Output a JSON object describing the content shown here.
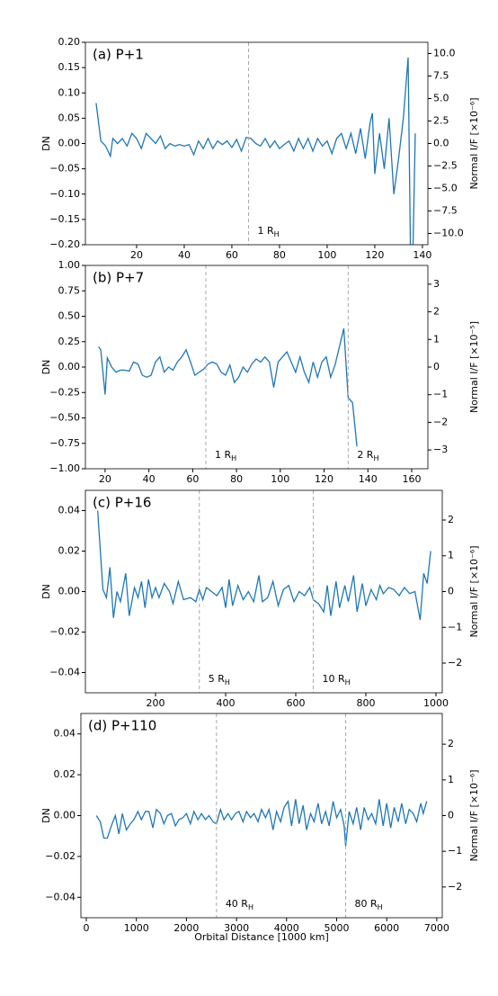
{
  "chart_data": [
    {
      "type": "line",
      "title": "(a) P+1",
      "ylabel": "DN",
      "y2label": "Normal I/F [×10⁻⁶]",
      "x": [
        3,
        5,
        7,
        9,
        10,
        12,
        14,
        16,
        18,
        20,
        22,
        24,
        26,
        28,
        30,
        32,
        34,
        36,
        38,
        40,
        42,
        44,
        46,
        48,
        50,
        52,
        54,
        56,
        58,
        60,
        62,
        64,
        66,
        68,
        70,
        72,
        74,
        76,
        78,
        80,
        82,
        84,
        86,
        88,
        90,
        92,
        94,
        96,
        98,
        100,
        102,
        104,
        106,
        108,
        110,
        112,
        114,
        116,
        118,
        119,
        120,
        122,
        124,
        126,
        128,
        130,
        132,
        134,
        135,
        136,
        137
      ],
      "series": [
        {
          "color": "#1f77b4",
          "values": [
            0.08,
            0.005,
            -0.005,
            -0.025,
            0.01,
            0,
            0.01,
            -0.005,
            0.02,
            0.01,
            -0.01,
            0.02,
            0.01,
            0,
            0.015,
            -0.01,
            0,
            -0.005,
            -0.002,
            -0.005,
            -0.002,
            -0.022,
            0.005,
            -0.01,
            0.01,
            -0.01,
            0.005,
            -0.002,
            0.005,
            -0.008,
            0.008,
            -0.015,
            0.012,
            0.01,
            0,
            -0.005,
            0.01,
            -0.008,
            0.005,
            -0.01,
            -0.002,
            0.005,
            -0.015,
            0.01,
            -0.01,
            0.01,
            -0.015,
            0.01,
            -0.005,
            0.005,
            -0.02,
            0.01,
            0.02,
            -0.01,
            0.02,
            -0.02,
            0.03,
            -0.03,
            0.04,
            0.06,
            -0.06,
            0.02,
            -0.05,
            0.05,
            -0.1,
            -0.03,
            0.05,
            0.17,
            -0.22,
            -0.22,
            0.02
          ]
        }
      ],
      "xlim": [
        -1.5,
        142.3
      ],
      "xticks": [
        20,
        40,
        60,
        80,
        100,
        120,
        140
      ],
      "ylim": [
        -0.2,
        0.2
      ],
      "yticks": [
        {
          "value": -0.2,
          "label": "−0.20"
        },
        {
          "value": -0.15,
          "label": "−0.15"
        },
        {
          "value": -0.1,
          "label": "−0.10"
        },
        {
          "value": -0.05,
          "label": "−0.05"
        },
        {
          "value": 0,
          "label": "0.00"
        },
        {
          "value": 0.05,
          "label": "0.05"
        },
        {
          "value": 0.1,
          "label": "0.10"
        },
        {
          "value": 0.15,
          "label": "0.15"
        },
        {
          "value": 0.2,
          "label": "0.20"
        }
      ],
      "y2lim": [
        -11.25,
        11.25
      ],
      "y2ticks": [
        {
          "value": -10,
          "label": "−10.0"
        },
        {
          "value": -7.5,
          "label": "−7.5"
        },
        {
          "value": -5,
          "label": "−5.0"
        },
        {
          "value": -2.5,
          "label": "−2.5"
        },
        {
          "value": 0,
          "label": "0.0"
        },
        {
          "value": 2.5,
          "label": "2.5"
        },
        {
          "value": 5,
          "label": "5.0"
        },
        {
          "value": 7.5,
          "label": "7.5"
        },
        {
          "value": 10,
          "label": "10.0"
        }
      ],
      "annotations": [
        {
          "x": 67,
          "text": "1 R",
          "sub": "H"
        }
      ]
    },
    {
      "type": "line",
      "title": "(b) P+7",
      "ylabel": "DN",
      "y2label": "Normal I/F [×10⁻⁵]",
      "x": [
        17,
        18,
        20,
        21,
        23,
        25,
        27,
        29,
        31,
        33,
        35,
        37,
        39,
        41,
        43,
        45,
        47,
        49,
        51,
        53,
        55,
        57,
        59,
        61,
        63,
        65,
        67,
        69,
        71,
        73,
        75,
        77,
        79,
        81,
        83,
        85,
        87,
        89,
        91,
        93,
        95,
        97,
        99,
        101,
        103,
        105,
        107,
        109,
        111,
        113,
        115,
        117,
        119,
        121,
        123,
        125,
        127,
        129,
        131,
        133,
        135
      ],
      "series": [
        {
          "color": "#1f77b4",
          "values": [
            0.2,
            0.17,
            -0.27,
            0.09,
            0,
            -0.05,
            -0.03,
            -0.03,
            -0.04,
            0.05,
            0.03,
            -0.08,
            -0.1,
            -0.08,
            0.05,
            0.1,
            -0.05,
            0,
            -0.03,
            0.05,
            0.1,
            0.17,
            0.05,
            -0.08,
            -0.05,
            -0.02,
            0.03,
            0.05,
            0.03,
            -0.05,
            -0.08,
            0.02,
            -0.15,
            -0.1,
            0,
            -0.05,
            0.03,
            0.08,
            0.05,
            0.1,
            0.05,
            -0.2,
            0.05,
            0.1,
            0.15,
            0.05,
            -0.05,
            0.1,
            -0.05,
            -0.15,
            0.05,
            -0.1,
            0.05,
            0.1,
            -0.1,
            0.02,
            0.2,
            0.38,
            -0.3,
            -0.35,
            -0.78
          ]
        }
      ],
      "xlim": [
        11,
        167.4
      ],
      "xticks": [
        20,
        40,
        60,
        80,
        100,
        120,
        140,
        160
      ],
      "ylim": [
        -1,
        1
      ],
      "yticks": [
        {
          "value": -1,
          "label": "−1.00"
        },
        {
          "value": -0.75,
          "label": "−0.75"
        },
        {
          "value": -0.5,
          "label": "−0.50"
        },
        {
          "value": -0.25,
          "label": "−0.25"
        },
        {
          "value": 0,
          "label": "0.00"
        },
        {
          "value": 0.25,
          "label": "0.25"
        },
        {
          "value": 0.5,
          "label": "0.50"
        },
        {
          "value": 0.75,
          "label": "0.75"
        },
        {
          "value": 1,
          "label": "1.00"
        }
      ],
      "y2lim": [
        -3.68,
        3.68
      ],
      "y2ticks": [
        {
          "value": -3,
          "label": "−3"
        },
        {
          "value": -2,
          "label": "−2"
        },
        {
          "value": -1,
          "label": "−1"
        },
        0,
        1,
        2,
        3
      ],
      "annotations": [
        {
          "x": 66,
          "text": "1 R",
          "sub": "H"
        },
        {
          "x": 131,
          "text": "2 R",
          "sub": "H"
        }
      ]
    },
    {
      "type": "line",
      "title": "(c) P+16",
      "ylabel": "DN",
      "y2label": "Normal I/F [×10⁻⁶]",
      "x": [
        35,
        50,
        60,
        70,
        80,
        90,
        100,
        115,
        125,
        140,
        150,
        160,
        170,
        180,
        190,
        200,
        210,
        225,
        240,
        250,
        265,
        280,
        300,
        315,
        325,
        335,
        345,
        360,
        375,
        390,
        400,
        410,
        420,
        435,
        450,
        465,
        480,
        495,
        505,
        520,
        535,
        550,
        565,
        580,
        595,
        610,
        625,
        640,
        650,
        665,
        680,
        690,
        700,
        715,
        725,
        740,
        750,
        765,
        775,
        790,
        800,
        815,
        830,
        840,
        850,
        865,
        880,
        895,
        910,
        925,
        940,
        955,
        965,
        975,
        985
      ],
      "series": [
        {
          "color": "#1f77b4",
          "values": [
            0.04,
            0.001,
            -0.003,
            0.012,
            -0.013,
            0,
            -0.005,
            0.009,
            -0.012,
            0.002,
            -0.003,
            0.005,
            -0.008,
            0.006,
            -0.003,
            0.002,
            -0.003,
            0.004,
            0,
            -0.006,
            0.005,
            -0.004,
            -0.003,
            -0.005,
            0.001,
            -0.004,
            0.002,
            0,
            -0.002,
            0.002,
            -0.008,
            0.006,
            -0.007,
            0.003,
            -0.004,
            0,
            -0.005,
            0.008,
            -0.005,
            -0.003,
            0.005,
            -0.007,
            0.001,
            0.003,
            -0.005,
            0,
            -0.002,
            0.002,
            -0.004,
            -0.006,
            -0.01,
            0.003,
            -0.012,
            0.005,
            -0.008,
            0.003,
            -0.005,
            0.008,
            -0.01,
            0.004,
            -0.007,
            0.001,
            -0.004,
            0.003,
            -0.001,
            0.002,
            0.001,
            -0.002,
            0.002,
            -0.001,
            0,
            -0.014,
            0.009,
            0.004,
            0.02
          ]
        }
      ],
      "xlim": [
        0,
        1018
      ],
      "xticks": [
        200,
        400,
        600,
        800,
        1000
      ],
      "ylim": [
        -0.05,
        0.05
      ],
      "yticks": [
        {
          "value": -0.04,
          "label": "−0.04"
        },
        {
          "value": -0.02,
          "label": "−0.02"
        },
        {
          "value": 0,
          "label": "0.00"
        },
        {
          "value": 0.02,
          "label": "0.02"
        },
        {
          "value": 0.04,
          "label": "0.04"
        }
      ],
      "y2lim": [
        -2.83,
        2.83
      ],
      "y2ticks": [
        {
          "value": -2,
          "label": "−2"
        },
        {
          "value": -1,
          "label": "−1"
        },
        0,
        1,
        2
      ],
      "annotations": [
        {
          "x": 325,
          "text": "5 R",
          "sub": "H"
        },
        {
          "x": 650,
          "text": "10 R",
          "sub": "H"
        }
      ]
    },
    {
      "type": "line",
      "title": "(d) P+110",
      "ylabel": "DN",
      "y2label": "Normal I/F [×10⁻⁶]",
      "xlabel": "Orbital Distance [1000 km]",
      "x": [
        200,
        280,
        350,
        420,
        500,
        580,
        650,
        720,
        800,
        880,
        950,
        1030,
        1100,
        1180,
        1250,
        1330,
        1400,
        1480,
        1550,
        1620,
        1700,
        1780,
        1850,
        1930,
        2000,
        2080,
        2150,
        2230,
        2300,
        2380,
        2450,
        2530,
        2600,
        2680,
        2750,
        2830,
        2900,
        2980,
        3050,
        3130,
        3200,
        3280,
        3350,
        3430,
        3500,
        3580,
        3650,
        3730,
        3800,
        3880,
        3950,
        4030,
        4100,
        4180,
        4250,
        4330,
        4400,
        4480,
        4550,
        4630,
        4700,
        4780,
        4850,
        4930,
        5000,
        5080,
        5150,
        5180,
        5250,
        5330,
        5400,
        5480,
        5550,
        5630,
        5700,
        5780,
        5850,
        5930,
        6000,
        6080,
        6150,
        6230,
        6300,
        6380,
        6450,
        6530,
        6600,
        6680,
        6730,
        6800
      ],
      "series": [
        {
          "color": "#1f77b4",
          "values": [
            0,
            -0.003,
            -0.011,
            -0.011,
            -0.005,
            0,
            -0.009,
            0.001,
            -0.007,
            -0.004,
            -0.002,
            0.002,
            -0.002,
            0.002,
            0.002,
            -0.006,
            0.003,
            0.001,
            -0.004,
            0,
            0.001,
            -0.005,
            -0.002,
            -0.001,
            0.001,
            -0.004,
            0.002,
            -0.002,
            0.001,
            -0.002,
            0,
            -0.003,
            -0.004,
            0.003,
            -0.002,
            0.001,
            -0.002,
            0.001,
            0.002,
            -0.003,
            0.002,
            -0.001,
            0.001,
            -0.003,
            0.003,
            -0.001,
            0.003,
            -0.007,
            0.002,
            -0.003,
            0.004,
            0.007,
            -0.005,
            0.008,
            -0.004,
            0.005,
            -0.007,
            0.001,
            -0.003,
            0.006,
            -0.004,
            0.002,
            -0.005,
            0.007,
            -0.001,
            0.003,
            -0.005,
            -0.015,
            0.002,
            -0.004,
            0.004,
            -0.007,
            0.004,
            -0.002,
            0.001,
            -0.004,
            0.008,
            -0.005,
            0.006,
            -0.006,
            0.004,
            -0.003,
            0.006,
            -0.004,
            0.003,
            0.001,
            -0.003,
            0.006,
            0.001,
            0.007
          ]
        }
      ],
      "xlim": [
        -108,
        7110
      ],
      "xticks": [
        0,
        1000,
        2000,
        3000,
        4000,
        5000,
        6000,
        7000
      ],
      "ylim": [
        -0.05,
        0.05
      ],
      "yticks": [
        {
          "value": -0.04,
          "label": "−0.04"
        },
        {
          "value": -0.02,
          "label": "−0.02"
        },
        {
          "value": 0,
          "label": "0.00"
        },
        {
          "value": 0.02,
          "label": "0.02"
        },
        {
          "value": 0.04,
          "label": "0.04"
        }
      ],
      "y2lim": [
        -2.86,
        2.86
      ],
      "y2ticks": [
        {
          "value": -2,
          "label": "−2"
        },
        {
          "value": -1,
          "label": "−1"
        },
        0,
        1,
        2
      ],
      "annotations": [
        {
          "x": 2600,
          "text": "40 R",
          "sub": "H"
        },
        {
          "x": 5180,
          "text": "80 R",
          "sub": "H"
        }
      ]
    }
  ]
}
